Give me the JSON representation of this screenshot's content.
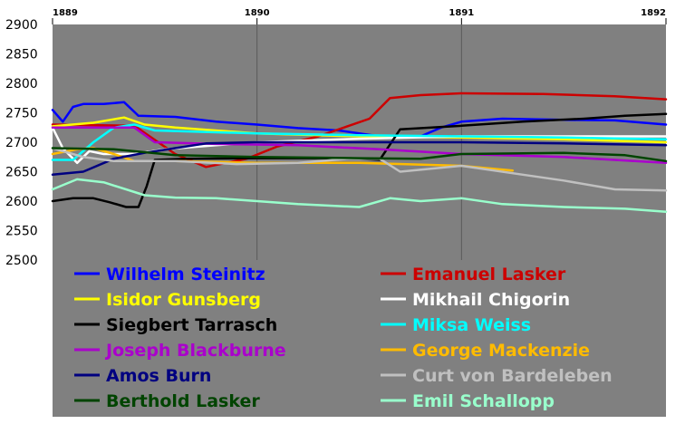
{
  "chart_data": {
    "type": "line",
    "title": "",
    "xlabel": "",
    "ylabel": "",
    "xlim": [
      1889,
      1892
    ],
    "ylim": [
      2500,
      2900
    ],
    "x_ticks": [
      "1889",
      "1890",
      "1891",
      "1892"
    ],
    "y_ticks": [
      "2900",
      "2850",
      "2800",
      "2750",
      "2700",
      "2650",
      "2600",
      "2550",
      "2500"
    ],
    "grid": "vertical lines at year boundaries",
    "plot_background": "#808080",
    "legend_background": "#808080",
    "legend_position": "bottom",
    "series": [
      {
        "name": "Wilhelm Steinitz",
        "color": "#0000ff",
        "points": [
          [
            1889.0,
            2755
          ],
          [
            1889.05,
            2735
          ],
          [
            1889.1,
            2760
          ],
          [
            1889.15,
            2765
          ],
          [
            1889.25,
            2765
          ],
          [
            1889.35,
            2768
          ],
          [
            1889.42,
            2745
          ],
          [
            1889.6,
            2743
          ],
          [
            1889.8,
            2735
          ],
          [
            1890.0,
            2730
          ],
          [
            1890.2,
            2724
          ],
          [
            1890.4,
            2720
          ],
          [
            1890.6,
            2710
          ],
          [
            1890.8,
            2710
          ],
          [
            1890.9,
            2725
          ],
          [
            1891.0,
            2735
          ],
          [
            1891.2,
            2740
          ],
          [
            1891.5,
            2738
          ],
          [
            1891.75,
            2737
          ],
          [
            1892.0,
            2730
          ]
        ]
      },
      {
        "name": "Emanuel Lasker",
        "color": "#cc0000",
        "points": [
          [
            1889.0,
            2730
          ],
          [
            1889.4,
            2728
          ],
          [
            1889.6,
            2680
          ],
          [
            1889.75,
            2658
          ],
          [
            1889.95,
            2672
          ],
          [
            1890.1,
            2693
          ],
          [
            1890.3,
            2710
          ],
          [
            1890.45,
            2728
          ],
          [
            1890.55,
            2740
          ],
          [
            1890.65,
            2775
          ],
          [
            1890.8,
            2780
          ],
          [
            1891.0,
            2783
          ],
          [
            1891.4,
            2782
          ],
          [
            1891.75,
            2778
          ],
          [
            1892.0,
            2773
          ]
        ]
      },
      {
        "name": "Isidor Gunsberg",
        "color": "#ffff00",
        "points": [
          [
            1889.0,
            2727
          ],
          [
            1889.2,
            2733
          ],
          [
            1889.35,
            2742
          ],
          [
            1889.45,
            2730
          ],
          [
            1889.6,
            2725
          ],
          [
            1890.0,
            2715
          ],
          [
            1890.5,
            2710
          ],
          [
            1891.0,
            2708
          ],
          [
            1891.5,
            2705
          ],
          [
            1892.0,
            2700
          ]
        ]
      },
      {
        "name": "Mikhail Chigorin",
        "color": "#ffffff",
        "points": [
          [
            1889.0,
            2725
          ],
          [
            1889.05,
            2690
          ],
          [
            1889.12,
            2665
          ],
          [
            1889.18,
            2685
          ],
          [
            1889.25,
            2680
          ],
          [
            1889.4,
            2680
          ],
          [
            1889.55,
            2688
          ],
          [
            1889.8,
            2695
          ],
          [
            1890.0,
            2700
          ],
          [
            1890.5,
            2706
          ],
          [
            1891.0,
            2710
          ],
          [
            1891.5,
            2710
          ],
          [
            1892.0,
            2710
          ]
        ]
      },
      {
        "name": "Siegbert Tarrasch",
        "color": "#000000",
        "points": [
          [
            1889.0,
            2600
          ],
          [
            1889.1,
            2605
          ],
          [
            1889.2,
            2605
          ],
          [
            1889.28,
            2598
          ],
          [
            1889.36,
            2590
          ],
          [
            1889.42,
            2590
          ],
          [
            1889.46,
            2625
          ],
          [
            1889.5,
            2670
          ],
          [
            1889.65,
            2672
          ],
          [
            1890.0,
            2673
          ],
          [
            1890.3,
            2673
          ],
          [
            1890.5,
            2672
          ],
          [
            1890.6,
            2670
          ],
          [
            1890.7,
            2722
          ],
          [
            1891.0,
            2728
          ],
          [
            1891.3,
            2735
          ],
          [
            1891.6,
            2740
          ],
          [
            1891.8,
            2745
          ],
          [
            1892.0,
            2748
          ]
        ]
      },
      {
        "name": "Miksa Weiss",
        "color": "#00ffff",
        "points": [
          [
            1889.0,
            2670
          ],
          [
            1889.1,
            2670
          ],
          [
            1889.2,
            2700
          ],
          [
            1889.3,
            2725
          ],
          [
            1889.4,
            2730
          ],
          [
            1889.5,
            2720
          ],
          [
            1890.0,
            2715
          ],
          [
            1890.5,
            2712
          ],
          [
            1891.0,
            2710
          ],
          [
            1891.5,
            2708
          ],
          [
            1892.0,
            2705
          ]
        ]
      },
      {
        "name": "Joseph Blackburne",
        "color": "#aa00cc",
        "points": [
          [
            1889.0,
            2725
          ],
          [
            1889.3,
            2725
          ],
          [
            1889.4,
            2725
          ],
          [
            1889.5,
            2700
          ],
          [
            1889.8,
            2697
          ],
          [
            1890.2,
            2695
          ],
          [
            1890.6,
            2688
          ],
          [
            1891.0,
            2680
          ],
          [
            1891.5,
            2675
          ],
          [
            1892.0,
            2665
          ]
        ]
      },
      {
        "name": "George Mackenzie",
        "color": "#ffbb00",
        "points": [
          [
            1889.0,
            2680
          ],
          [
            1889.12,
            2688
          ],
          [
            1889.2,
            2690
          ],
          [
            1889.3,
            2680
          ],
          [
            1889.4,
            2668
          ],
          [
            1889.6,
            2668
          ],
          [
            1890.0,
            2665
          ],
          [
            1890.5,
            2665
          ],
          [
            1891.0,
            2660
          ],
          [
            1891.25,
            2652
          ]
        ]
      },
      {
        "name": "Amos Burn",
        "color": "#000080",
        "points": [
          [
            1889.0,
            2645
          ],
          [
            1889.15,
            2650
          ],
          [
            1889.3,
            2672
          ],
          [
            1889.45,
            2682
          ],
          [
            1889.6,
            2690
          ],
          [
            1889.75,
            2698
          ],
          [
            1890.0,
            2700
          ],
          [
            1890.5,
            2700
          ],
          [
            1891.0,
            2700
          ],
          [
            1891.5,
            2698
          ],
          [
            1892.0,
            2695
          ]
        ]
      },
      {
        "name": "Curt von Bardeleben",
        "color": "#c0c0c0",
        "points": [
          [
            1889.0,
            2690
          ],
          [
            1889.15,
            2675
          ],
          [
            1889.3,
            2668
          ],
          [
            1889.6,
            2668
          ],
          [
            1889.9,
            2663
          ],
          [
            1890.2,
            2665
          ],
          [
            1890.45,
            2672
          ],
          [
            1890.6,
            2672
          ],
          [
            1890.7,
            2650
          ],
          [
            1891.0,
            2660
          ],
          [
            1891.3,
            2645
          ],
          [
            1891.5,
            2635
          ],
          [
            1891.75,
            2620
          ],
          [
            1892.0,
            2618
          ]
        ]
      },
      {
        "name": "Berthold Lasker",
        "color": "#004400",
        "points": [
          [
            1889.0,
            2690
          ],
          [
            1889.3,
            2688
          ],
          [
            1889.6,
            2678
          ],
          [
            1890.0,
            2675
          ],
          [
            1890.5,
            2673
          ],
          [
            1890.8,
            2672
          ],
          [
            1891.0,
            2680
          ],
          [
            1891.5,
            2682
          ],
          [
            1891.8,
            2678
          ],
          [
            1892.0,
            2668
          ]
        ]
      },
      {
        "name": "Emil Schallopp",
        "color": "#99ffcc",
        "points": [
          [
            1889.0,
            2620
          ],
          [
            1889.12,
            2637
          ],
          [
            1889.25,
            2632
          ],
          [
            1889.45,
            2610
          ],
          [
            1889.6,
            2606
          ],
          [
            1889.8,
            2605
          ],
          [
            1890.0,
            2600
          ],
          [
            1890.2,
            2595
          ],
          [
            1890.5,
            2590
          ],
          [
            1890.65,
            2605
          ],
          [
            1890.8,
            2600
          ],
          [
            1891.0,
            2605
          ],
          [
            1891.2,
            2595
          ],
          [
            1891.5,
            2590
          ],
          [
            1891.8,
            2587
          ],
          [
            1892.0,
            2582
          ]
        ]
      }
    ]
  }
}
